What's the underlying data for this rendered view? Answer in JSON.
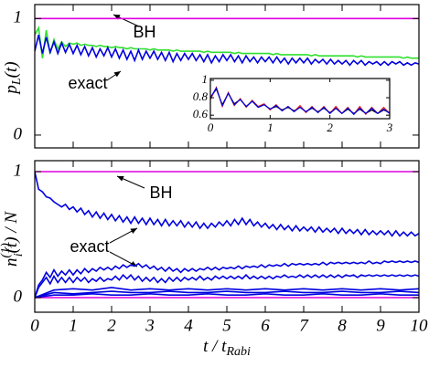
{
  "chart_data": [
    {
      "type": "line",
      "ylabel": {
        "base": "p",
        "sub": "L",
        "rest": "(t)"
      },
      "xlim": [
        0,
        10
      ],
      "ylim": [
        -0.11,
        1.12
      ],
      "xticks": [
        0,
        1,
        2,
        3,
        4,
        5,
        6,
        7,
        8,
        9,
        10
      ],
      "xtick_labels": false,
      "yticks": [
        0,
        1
      ],
      "annotations": [
        "BH",
        "exact"
      ],
      "x": [
        0,
        0.1,
        0.2,
        0.3,
        0.4,
        0.5,
        0.6,
        0.7,
        0.8,
        0.9,
        1,
        1.1,
        1.2,
        1.3,
        1.4,
        1.5,
        1.6,
        1.7,
        1.8,
        1.9,
        2,
        2.1,
        2.2,
        2.3,
        2.4,
        2.5,
        2.6,
        2.7,
        2.8,
        2.9,
        3,
        3.1,
        3.2,
        3.3,
        3.4,
        3.5,
        3.6,
        3.7,
        3.8,
        3.9,
        4,
        4.1,
        4.2,
        4.3,
        4.4,
        4.5,
        4.6,
        4.7,
        4.8,
        4.9,
        5,
        5.1,
        5.2,
        5.3,
        5.4,
        5.5,
        5.6,
        5.7,
        5.8,
        5.9,
        6,
        6.1,
        6.2,
        6.3,
        6.4,
        6.5,
        6.6,
        6.7,
        6.8,
        6.9,
        7,
        7.1,
        7.2,
        7.3,
        7.4,
        7.5,
        7.6,
        7.7,
        7.8,
        7.9,
        8,
        8.1,
        8.2,
        8.3,
        8.4,
        8.5,
        8.6,
        8.7,
        8.8,
        8.9,
        9,
        9.1,
        9.2,
        9.3,
        9.4,
        9.5,
        9.6,
        9.7,
        9.8,
        9.9,
        10
      ],
      "series": [
        {
          "color": "#e000e0",
          "x": [
            0,
            10
          ],
          "values": [
            1,
            1
          ]
        },
        {
          "color": "#30e030",
          "values": [
            0.86,
            0.92,
            0.66,
            0.9,
            0.7,
            0.82,
            0.74,
            0.8,
            0.76,
            0.79,
            0.78,
            0.79,
            0.77,
            0.78,
            0.77,
            0.77,
            0.76,
            0.77,
            0.76,
            0.76,
            0.75,
            0.76,
            0.75,
            0.75,
            0.74,
            0.75,
            0.74,
            0.74,
            0.74,
            0.74,
            0.73,
            0.74,
            0.73,
            0.73,
            0.73,
            0.73,
            0.72,
            0.73,
            0.72,
            0.72,
            0.72,
            0.72,
            0.72,
            0.72,
            0.71,
            0.72,
            0.71,
            0.71,
            0.71,
            0.71,
            0.71,
            0.71,
            0.7,
            0.71,
            0.7,
            0.7,
            0.7,
            0.7,
            0.7,
            0.7,
            0.7,
            0.7,
            0.69,
            0.7,
            0.69,
            0.69,
            0.69,
            0.69,
            0.69,
            0.69,
            0.69,
            0.69,
            0.68,
            0.69,
            0.68,
            0.68,
            0.68,
            0.68,
            0.68,
            0.68,
            0.68,
            0.68,
            0.68,
            0.68,
            0.67,
            0.68,
            0.67,
            0.67,
            0.67,
            0.67,
            0.67,
            0.67,
            0.67,
            0.67,
            0.67,
            0.67,
            0.66,
            0.67,
            0.66,
            0.66,
            0.66
          ]
        },
        {
          "color": "#0000e0",
          "values": [
            0.72,
            0.86,
            0.7,
            0.84,
            0.71,
            0.8,
            0.7,
            0.79,
            0.71,
            0.78,
            0.7,
            0.77,
            0.69,
            0.76,
            0.68,
            0.75,
            0.67,
            0.74,
            0.68,
            0.75,
            0.67,
            0.74,
            0.66,
            0.73,
            0.65,
            0.72,
            0.64,
            0.73,
            0.65,
            0.72,
            0.66,
            0.72,
            0.65,
            0.71,
            0.64,
            0.71,
            0.63,
            0.7,
            0.64,
            0.7,
            0.65,
            0.7,
            0.64,
            0.69,
            0.63,
            0.69,
            0.62,
            0.68,
            0.63,
            0.69,
            0.64,
            0.69,
            0.63,
            0.68,
            0.62,
            0.68,
            0.63,
            0.67,
            0.62,
            0.67,
            0.63,
            0.67,
            0.62,
            0.67,
            0.62,
            0.66,
            0.61,
            0.66,
            0.62,
            0.66,
            0.62,
            0.66,
            0.61,
            0.65,
            0.62,
            0.65,
            0.61,
            0.65,
            0.61,
            0.64,
            0.61,
            0.64,
            0.6,
            0.64,
            0.61,
            0.64,
            0.6,
            0.63,
            0.61,
            0.63,
            0.6,
            0.63,
            0.6,
            0.63,
            0.61,
            0.63,
            0.6,
            0.62,
            0.6,
            0.62,
            0.61
          ]
        }
      ]
    },
    {
      "type": "line",
      "xlim": [
        0,
        3
      ],
      "ylim": [
        0.56,
        1.02
      ],
      "xticks": [
        0,
        1,
        2,
        3
      ],
      "yticks": [
        0.6,
        0.8,
        1
      ],
      "x": [
        0,
        0.1,
        0.2,
        0.3,
        0.4,
        0.5,
        0.6,
        0.7,
        0.8,
        0.9,
        1,
        1.1,
        1.2,
        1.3,
        1.4,
        1.5,
        1.6,
        1.7,
        1.8,
        1.9,
        2,
        2.1,
        2.2,
        2.3,
        2.4,
        2.5,
        2.6,
        2.7,
        2.8,
        2.9,
        3
      ],
      "series": [
        {
          "color": "#000000",
          "values": [
            0.8,
            0.9,
            0.72,
            0.85,
            0.73,
            0.78,
            0.7,
            0.76,
            0.69,
            0.72,
            0.67,
            0.7,
            0.66,
            0.69,
            0.65,
            0.69,
            0.64,
            0.68,
            0.64,
            0.68,
            0.63,
            0.68,
            0.62,
            0.67,
            0.62,
            0.67,
            0.62,
            0.66,
            0.62,
            0.66,
            0.63
          ]
        },
        {
          "color": "#e02020",
          "values": [
            0.78,
            0.92,
            0.7,
            0.86,
            0.71,
            0.79,
            0.69,
            0.77,
            0.7,
            0.73,
            0.66,
            0.72,
            0.65,
            0.7,
            0.64,
            0.71,
            0.63,
            0.7,
            0.63,
            0.7,
            0.62,
            0.7,
            0.62,
            0.69,
            0.61,
            0.7,
            0.61,
            0.69,
            0.62,
            0.69,
            0.62
          ]
        },
        {
          "color": "#0000e0",
          "values": [
            0.8,
            0.91,
            0.71,
            0.85,
            0.72,
            0.78,
            0.7,
            0.76,
            0.69,
            0.72,
            0.67,
            0.71,
            0.65,
            0.7,
            0.64,
            0.69,
            0.64,
            0.69,
            0.63,
            0.69,
            0.62,
            0.68,
            0.62,
            0.68,
            0.61,
            0.68,
            0.62,
            0.68,
            0.62,
            0.67,
            0.62
          ]
        }
      ]
    },
    {
      "type": "line",
      "ylabel": {
        "base": "n",
        "sub": "i",
        "sup": "(1)",
        "rest": "(t) / N"
      },
      "xlabel": {
        "base": "t / t",
        "sub": "Rabi"
      },
      "xlim": [
        0,
        10
      ],
      "ylim": [
        -0.116,
        1.087
      ],
      "xticks": [
        0,
        1,
        2,
        3,
        4,
        5,
        6,
        7,
        8,
        9,
        10
      ],
      "yticks": [
        0,
        1
      ],
      "annotations": [
        "BH",
        "exact"
      ],
      "x": [
        0,
        0.1,
        0.2,
        0.3,
        0.4,
        0.5,
        0.6,
        0.7,
        0.8,
        0.9,
        1,
        1.1,
        1.2,
        1.3,
        1.4,
        1.5,
        1.6,
        1.7,
        1.8,
        1.9,
        2,
        2.1,
        2.2,
        2.3,
        2.4,
        2.5,
        2.6,
        2.7,
        2.8,
        2.9,
        3,
        3.1,
        3.2,
        3.3,
        3.4,
        3.5,
        3.6,
        3.7,
        3.8,
        3.9,
        4,
        4.1,
        4.2,
        4.3,
        4.4,
        4.5,
        4.6,
        4.7,
        4.8,
        4.9,
        5,
        5.1,
        5.2,
        5.3,
        5.4,
        5.5,
        5.6,
        5.7,
        5.8,
        5.9,
        6,
        6.1,
        6.2,
        6.3,
        6.4,
        6.5,
        6.6,
        6.7,
        6.8,
        6.9,
        7,
        7.1,
        7.2,
        7.3,
        7.4,
        7.5,
        7.6,
        7.7,
        7.8,
        7.9,
        8,
        8.1,
        8.2,
        8.3,
        8.4,
        8.5,
        8.6,
        8.7,
        8.8,
        8.9,
        9,
        9.1,
        9.2,
        9.3,
        9.4,
        9.5,
        9.6,
        9.7,
        9.8,
        9.9,
        10
      ],
      "series": [
        {
          "color": "#e000e0",
          "x": [
            0,
            10
          ],
          "values": [
            1,
            1
          ]
        },
        {
          "color": "#e000e0",
          "x": [
            0,
            10
          ],
          "values": [
            0,
            0
          ]
        },
        {
          "color": "#0000e0",
          "values": [
            1.0,
            0.86,
            0.84,
            0.8,
            0.79,
            0.76,
            0.74,
            0.72,
            0.74,
            0.7,
            0.72,
            0.68,
            0.71,
            0.66,
            0.69,
            0.64,
            0.68,
            0.63,
            0.67,
            0.62,
            0.66,
            0.61,
            0.65,
            0.6,
            0.64,
            0.59,
            0.64,
            0.59,
            0.63,
            0.58,
            0.63,
            0.58,
            0.62,
            0.57,
            0.62,
            0.57,
            0.61,
            0.57,
            0.61,
            0.56,
            0.6,
            0.56,
            0.6,
            0.55,
            0.59,
            0.55,
            0.59,
            0.56,
            0.6,
            0.57,
            0.61,
            0.57,
            0.62,
            0.58,
            0.63,
            0.58,
            0.62,
            0.57,
            0.6,
            0.56,
            0.59,
            0.55,
            0.58,
            0.54,
            0.58,
            0.54,
            0.57,
            0.53,
            0.57,
            0.53,
            0.56,
            0.53,
            0.56,
            0.52,
            0.56,
            0.52,
            0.55,
            0.52,
            0.55,
            0.51,
            0.55,
            0.51,
            0.54,
            0.51,
            0.54,
            0.5,
            0.54,
            0.5,
            0.53,
            0.5,
            0.53,
            0.5,
            0.53,
            0.49,
            0.53,
            0.49,
            0.52,
            0.49,
            0.52,
            0.49,
            0.51
          ]
        },
        {
          "color": "#0000e0",
          "values": [
            0.0,
            0.1,
            0.14,
            0.2,
            0.16,
            0.22,
            0.17,
            0.21,
            0.18,
            0.22,
            0.18,
            0.22,
            0.19,
            0.23,
            0.2,
            0.23,
            0.21,
            0.24,
            0.22,
            0.24,
            0.22,
            0.25,
            0.23,
            0.26,
            0.24,
            0.26,
            0.25,
            0.27,
            0.24,
            0.26,
            0.23,
            0.25,
            0.22,
            0.24,
            0.21,
            0.24,
            0.21,
            0.23,
            0.2,
            0.23,
            0.21,
            0.23,
            0.21,
            0.23,
            0.22,
            0.24,
            0.22,
            0.24,
            0.22,
            0.24,
            0.23,
            0.24,
            0.23,
            0.25,
            0.23,
            0.25,
            0.24,
            0.25,
            0.24,
            0.26,
            0.24,
            0.26,
            0.25,
            0.26,
            0.25,
            0.27,
            0.25,
            0.27,
            0.26,
            0.27,
            0.26,
            0.27,
            0.26,
            0.27,
            0.26,
            0.28,
            0.26,
            0.28,
            0.27,
            0.28,
            0.27,
            0.28,
            0.27,
            0.28,
            0.27,
            0.28,
            0.27,
            0.29,
            0.27,
            0.28,
            0.27,
            0.29,
            0.28,
            0.29,
            0.28,
            0.29,
            0.28,
            0.29,
            0.28,
            0.29,
            0.28
          ]
        },
        {
          "color": "#0000e0",
          "values": [
            0.0,
            0.08,
            0.12,
            0.16,
            0.11,
            0.17,
            0.12,
            0.16,
            0.12,
            0.16,
            0.12,
            0.16,
            0.13,
            0.16,
            0.12,
            0.15,
            0.13,
            0.16,
            0.13,
            0.15,
            0.14,
            0.17,
            0.14,
            0.18,
            0.15,
            0.18,
            0.14,
            0.17,
            0.13,
            0.16,
            0.13,
            0.16,
            0.12,
            0.15,
            0.12,
            0.16,
            0.13,
            0.16,
            0.13,
            0.16,
            0.14,
            0.16,
            0.14,
            0.17,
            0.14,
            0.16,
            0.14,
            0.17,
            0.15,
            0.17,
            0.15,
            0.17,
            0.15,
            0.17,
            0.15,
            0.18,
            0.15,
            0.17,
            0.15,
            0.17,
            0.15,
            0.17,
            0.15,
            0.17,
            0.16,
            0.18,
            0.16,
            0.17,
            0.16,
            0.18,
            0.16,
            0.18,
            0.16,
            0.18,
            0.16,
            0.18,
            0.16,
            0.18,
            0.16,
            0.18,
            0.16,
            0.18,
            0.17,
            0.18,
            0.16,
            0.18,
            0.17,
            0.18,
            0.17,
            0.18,
            0.17,
            0.18,
            0.17,
            0.18,
            0.17,
            0.18,
            0.17,
            0.18,
            0.17,
            0.18,
            0.17
          ]
        },
        {
          "color": "#0000e0",
          "x": [
            0,
            0.5,
            1,
            1.5,
            2,
            2.5,
            3,
            3.5,
            4,
            4.5,
            5,
            5.5,
            6,
            6.5,
            7,
            7.5,
            8,
            8.5,
            9,
            9.5,
            10
          ],
          "values": [
            0,
            0.06,
            0.07,
            0.06,
            0.08,
            0.06,
            0.07,
            0.06,
            0.07,
            0.06,
            0.07,
            0.06,
            0.07,
            0.06,
            0.07,
            0.06,
            0.07,
            0.06,
            0.07,
            0.06,
            0.07
          ]
        },
        {
          "color": "#0000e0",
          "x": [
            0,
            0.5,
            1,
            1.5,
            2,
            2.5,
            3,
            3.5,
            4,
            4.5,
            5,
            5.5,
            6,
            6.5,
            7,
            7.5,
            8,
            8.5,
            9,
            9.5,
            10
          ],
          "values": [
            0,
            0.04,
            0.03,
            0.04,
            0.05,
            0.04,
            0.04,
            0.05,
            0.04,
            0.04,
            0.05,
            0.04,
            0.04,
            0.05,
            0.04,
            0.04,
            0.05,
            0.04,
            0.04,
            0.05,
            0.04
          ]
        },
        {
          "color": "#0000e0",
          "x": [
            0,
            0.5,
            1,
            1.5,
            2,
            2.5,
            3,
            3.5,
            4,
            4.5,
            5,
            5.5,
            6,
            6.5,
            7,
            7.5,
            8,
            8.5,
            9,
            9.5,
            10
          ],
          "values": [
            0,
            0.02,
            0.02,
            0.03,
            0.02,
            0.02,
            0.03,
            0.02,
            0.02,
            0.03,
            0.02,
            0.02,
            0.03,
            0.02,
            0.02,
            0.03,
            0.02,
            0.02,
            0.03,
            0.02,
            0.02
          ]
        }
      ]
    }
  ]
}
